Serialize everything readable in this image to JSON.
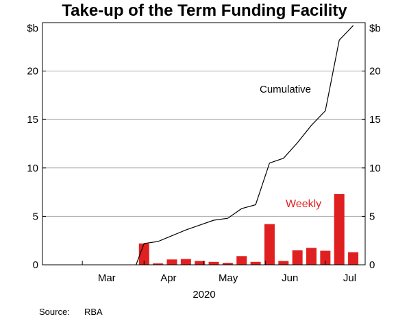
{
  "chart_data": {
    "type": "bar",
    "title": "Take-up of the Term Funding Facility",
    "y_unit_label": "$b",
    "ylim": [
      0,
      25
    ],
    "yticks": [
      0,
      5,
      10,
      15,
      20
    ],
    "grid": true,
    "x_year_label": "2020",
    "x_month_labels": [
      "Mar",
      "Apr",
      "May",
      "Jun",
      "Jul"
    ],
    "series": [
      {
        "name": "Weekly",
        "type": "bar",
        "color": "#e02020",
        "dates": [
          "2020-04-01",
          "2020-04-08",
          "2020-04-15",
          "2020-04-22",
          "2020-04-29",
          "2020-05-06",
          "2020-05-13",
          "2020-05-20",
          "2020-05-27",
          "2020-06-03",
          "2020-06-10",
          "2020-06-17",
          "2020-06-24",
          "2020-07-01",
          "2020-07-08",
          "2020-07-15"
        ],
        "values": [
          2.2,
          0.15,
          0.55,
          0.6,
          0.4,
          0.3,
          0.2,
          0.9,
          0.3,
          4.2,
          0.4,
          1.5,
          1.75,
          1.45,
          7.3,
          1.3
        ]
      },
      {
        "name": "Cumulative",
        "type": "line",
        "color": "#000000",
        "dates": [
          "2020-03-28",
          "2020-04-01",
          "2020-04-08",
          "2020-04-15",
          "2020-04-22",
          "2020-04-29",
          "2020-05-06",
          "2020-05-13",
          "2020-05-20",
          "2020-05-27",
          "2020-06-03",
          "2020-06-10",
          "2020-06-17",
          "2020-06-24",
          "2020-07-01",
          "2020-07-08",
          "2020-07-15"
        ],
        "values": [
          0,
          2.2,
          2.4,
          3.0,
          3.6,
          4.1,
          4.6,
          4.8,
          5.8,
          6.2,
          10.5,
          11.0,
          12.6,
          14.4,
          15.9,
          23.2,
          24.7
        ]
      }
    ]
  },
  "source": {
    "label": "Source:",
    "value": "RBA"
  }
}
